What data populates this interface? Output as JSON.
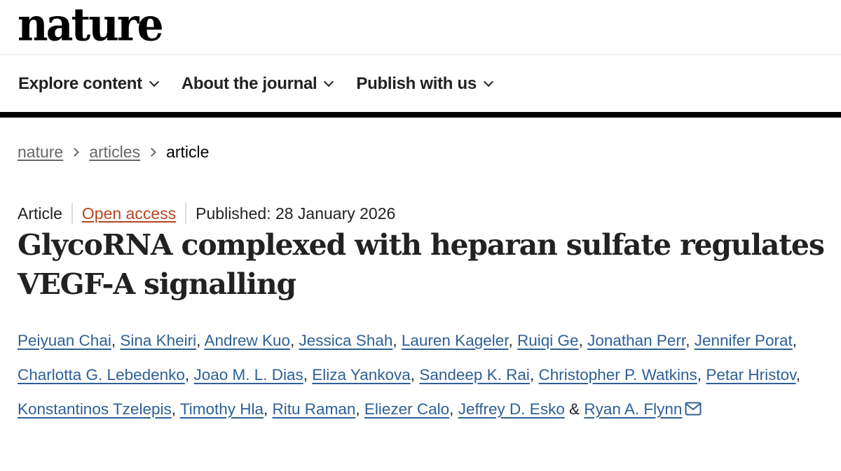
{
  "header": {
    "logo": "nature"
  },
  "nav": [
    {
      "label": "Explore content"
    },
    {
      "label": "About the journal"
    },
    {
      "label": "Publish with us"
    }
  ],
  "breadcrumb": [
    {
      "label": "nature"
    },
    {
      "label": "articles"
    },
    {
      "label": "article"
    }
  ],
  "meta": {
    "type": "Article",
    "access": "Open access",
    "published": "Published: 28 January 2026",
    "access_color": "#b5461f"
  },
  "title": "GlycoRNA complexed with heparan sulfate regulates VEGF-A signalling",
  "authors": [
    "Peiyuan Chai",
    "Sina Kheiri",
    "Andrew Kuo",
    "Jessica Shah",
    "Lauren Kageler",
    "Ruiqi Ge",
    "Jonathan Perr",
    "Jennifer Porat",
    "Charlotta G. Lebedenko",
    "Joao M. L. Dias",
    "Eliza Yankova",
    "Sandeep K. Rai",
    "Christopher P. Watkins",
    "Petar Hristov",
    "Konstantinos Tzelepis",
    "Timothy Hla",
    "Ritu Raman",
    "Eliezer Calo",
    "Jeffrey D. Esko",
    "Ryan A. Flynn"
  ],
  "author_conjunction": "&",
  "icons": {
    "contact": "mail-icon"
  },
  "colors": {
    "link": "#2e6096"
  }
}
